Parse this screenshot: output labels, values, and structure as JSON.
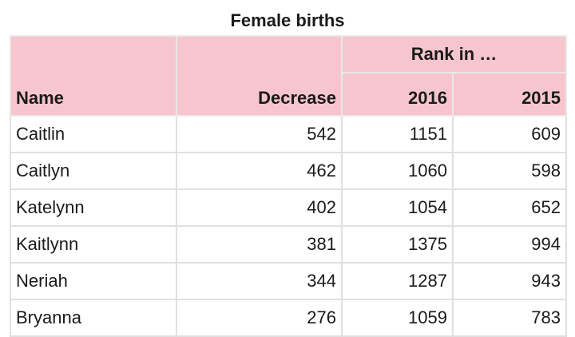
{
  "caption": "Female births",
  "header": {
    "group_label": "Rank in …",
    "name": "Name",
    "decrease": "Decrease",
    "year_a": "2016",
    "year_b": "2015"
  },
  "rows": [
    {
      "name": "Caitlin",
      "decrease": "542",
      "rank_2016": "1151",
      "rank_2015": "609"
    },
    {
      "name": "Caitlyn",
      "decrease": "462",
      "rank_2016": "1060",
      "rank_2015": "598"
    },
    {
      "name": "Katelynn",
      "decrease": "402",
      "rank_2016": "1054",
      "rank_2015": "652"
    },
    {
      "name": "Kaitlynn",
      "decrease": "381",
      "rank_2016": "1375",
      "rank_2015": "994"
    },
    {
      "name": "Neriah",
      "decrease": "344",
      "rank_2016": "1287",
      "rank_2015": "943"
    },
    {
      "name": "Bryanna",
      "decrease": "276",
      "rank_2016": "1059",
      "rank_2015": "783"
    }
  ]
}
